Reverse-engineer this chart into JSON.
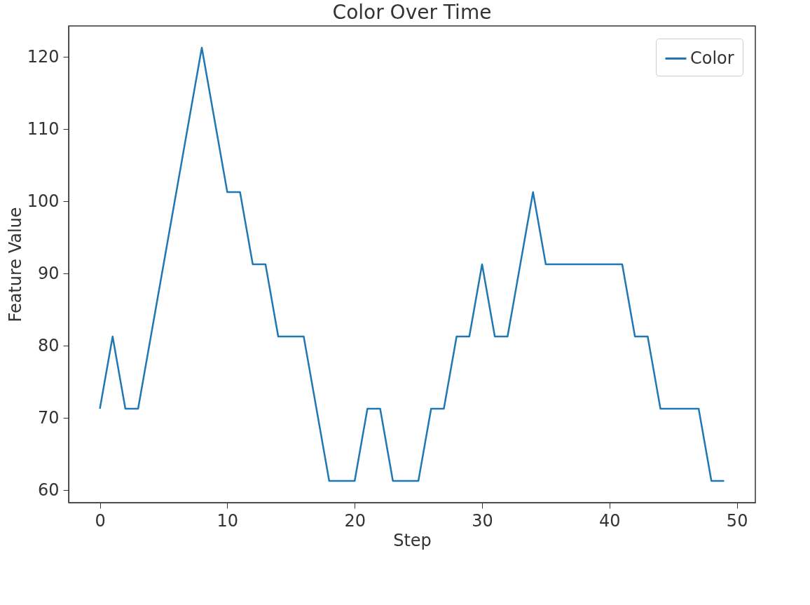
{
  "chart_data": {
    "type": "line",
    "title": "Color Over Time",
    "xlabel": "Step",
    "ylabel": "Feature Value",
    "x": [
      0,
      1,
      2,
      3,
      4,
      5,
      6,
      7,
      8,
      9,
      10,
      11,
      12,
      13,
      14,
      15,
      16,
      17,
      18,
      19,
      20,
      21,
      22,
      23,
      24,
      25,
      26,
      27,
      28,
      29,
      30,
      31,
      32,
      33,
      34,
      35,
      36,
      37,
      38,
      39,
      40,
      41,
      42,
      43,
      44,
      45,
      46,
      47,
      48,
      49
    ],
    "series": [
      {
        "name": "Color",
        "color": "#1f77b4",
        "values": [
          71.3,
          81.3,
          71.3,
          71.3,
          81.3,
          91.3,
          101.3,
          111.3,
          121.3,
          111.3,
          101.3,
          101.3,
          91.3,
          91.3,
          81.3,
          81.3,
          81.3,
          71.3,
          61.3,
          61.3,
          61.3,
          71.3,
          71.3,
          61.3,
          61.3,
          61.3,
          71.3,
          71.3,
          81.3,
          81.3,
          91.3,
          81.3,
          81.3,
          91.3,
          101.3,
          91.3,
          91.3,
          91.3,
          91.3,
          91.3,
          91.3,
          91.3,
          81.3,
          81.3,
          71.3,
          71.3,
          71.3,
          71.3,
          61.3,
          61.3
        ]
      }
    ],
    "xlim": [
      -2.45,
      51.45
    ],
    "ylim": [
      58.3,
      124.3
    ],
    "xticks": [
      0,
      10,
      20,
      30,
      40,
      50
    ],
    "yticks": [
      60,
      70,
      80,
      90,
      100,
      110,
      120
    ],
    "legend": "top right",
    "grid": false,
    "marker": "none",
    "line_style": "solid"
  }
}
